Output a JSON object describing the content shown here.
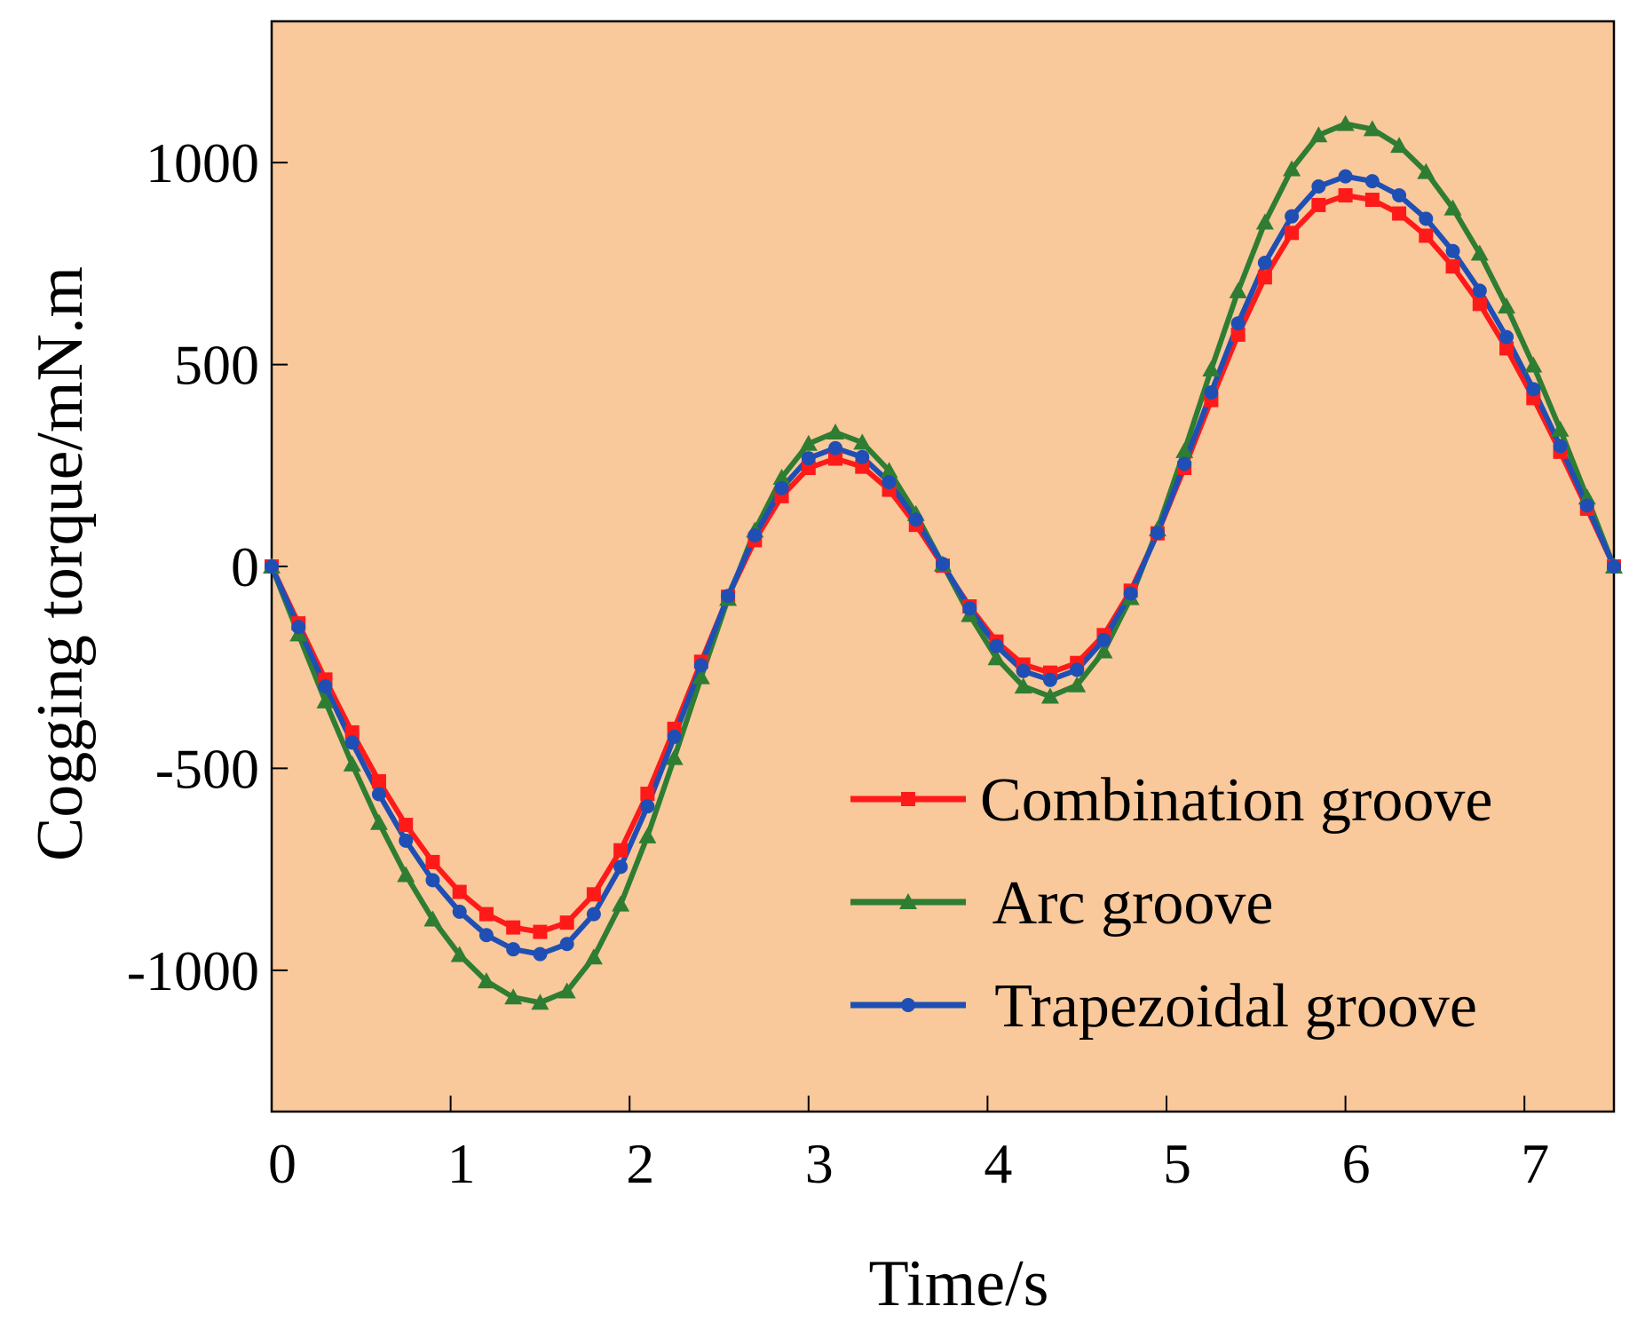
{
  "chart_data": {
    "type": "line",
    "xlabel": "Time/s",
    "ylabel": "Cogging torque/mN.m",
    "x": [
      0,
      0.15,
      0.3,
      0.45,
      0.6,
      0.75,
      0.9,
      1.05,
      1.2,
      1.35,
      1.5,
      1.65,
      1.8,
      1.95,
      2.1,
      2.25,
      2.4,
      2.55,
      2.7,
      2.85,
      3,
      3.15,
      3.3,
      3.45,
      3.6,
      3.75,
      3.9,
      4.05,
      4.2,
      4.35,
      4.5,
      4.65,
      4.8,
      4.95,
      5.1,
      5.25,
      5.4,
      5.55,
      5.7,
      5.85,
      6,
      6.15,
      6.3,
      6.45,
      6.6,
      6.75,
      6.9,
      7.05,
      7.2,
      7.35,
      7.5
    ],
    "series": [
      {
        "name": "Combination groove",
        "color": "#ff1a1a",
        "marker": "square",
        "values": [
          0,
          -141,
          -280,
          -411,
          -532,
          -640,
          -732,
          -806,
          -861,
          -894,
          -905,
          -882,
          -812,
          -703,
          -563,
          -402,
          -236,
          -75,
          65,
          174,
          244,
          267,
          247,
          190,
          103,
          2,
          -99,
          -186,
          -243,
          -263,
          -239,
          -170,
          -60,
          82,
          244,
          412,
          574,
          716,
          826,
          895,
          919,
          908,
          874,
          819,
          743,
          650,
          540,
          417,
          284,
          143,
          0
        ]
      },
      {
        "name": " Arc groove",
        "color": "#2e7d32",
        "marker": "triangle",
        "values": [
          0,
          -168,
          -334,
          -490,
          -635,
          -764,
          -874,
          -962,
          -1027,
          -1067,
          -1080,
          -1052,
          -968,
          -837,
          -668,
          -474,
          -274,
          -80,
          89,
          220,
          304,
          332,
          307,
          237,
          130,
          5,
          -120,
          -227,
          -297,
          -322,
          -294,
          -210,
          -78,
          92,
          286,
          488,
          682,
          852,
          984,
          1068,
          1096,
          1083,
          1042,
          977,
          887,
          775,
          644,
          498,
          339,
          171,
          0
        ]
      },
      {
        "name": " Trapezoidal groove",
        "color": "#1f4fb4",
        "marker": "circle",
        "values": [
          0,
          -150,
          -297,
          -436,
          -564,
          -679,
          -777,
          -855,
          -913,
          -948,
          -960,
          -935,
          -861,
          -744,
          -594,
          -422,
          -245,
          -73,
          77,
          194,
          268,
          293,
          271,
          209,
          116,
          6,
          -104,
          -197,
          -259,
          -281,
          -256,
          -182,
          -67,
          83,
          254,
          431,
          602,
          752,
          867,
          941,
          966,
          954,
          919,
          861,
          781,
          683,
          568,
          439,
          298,
          151,
          0
        ]
      }
    ],
    "xlim": [
      0,
      7.5
    ],
    "xticks": [
      0,
      1,
      2,
      3,
      4,
      5,
      6,
      7
    ],
    "ylim": [
      -1350,
      1350
    ],
    "yticks": [
      -1000,
      -500,
      0,
      500,
      1000
    ],
    "legend": "lower right",
    "background": "#f9c89b"
  }
}
